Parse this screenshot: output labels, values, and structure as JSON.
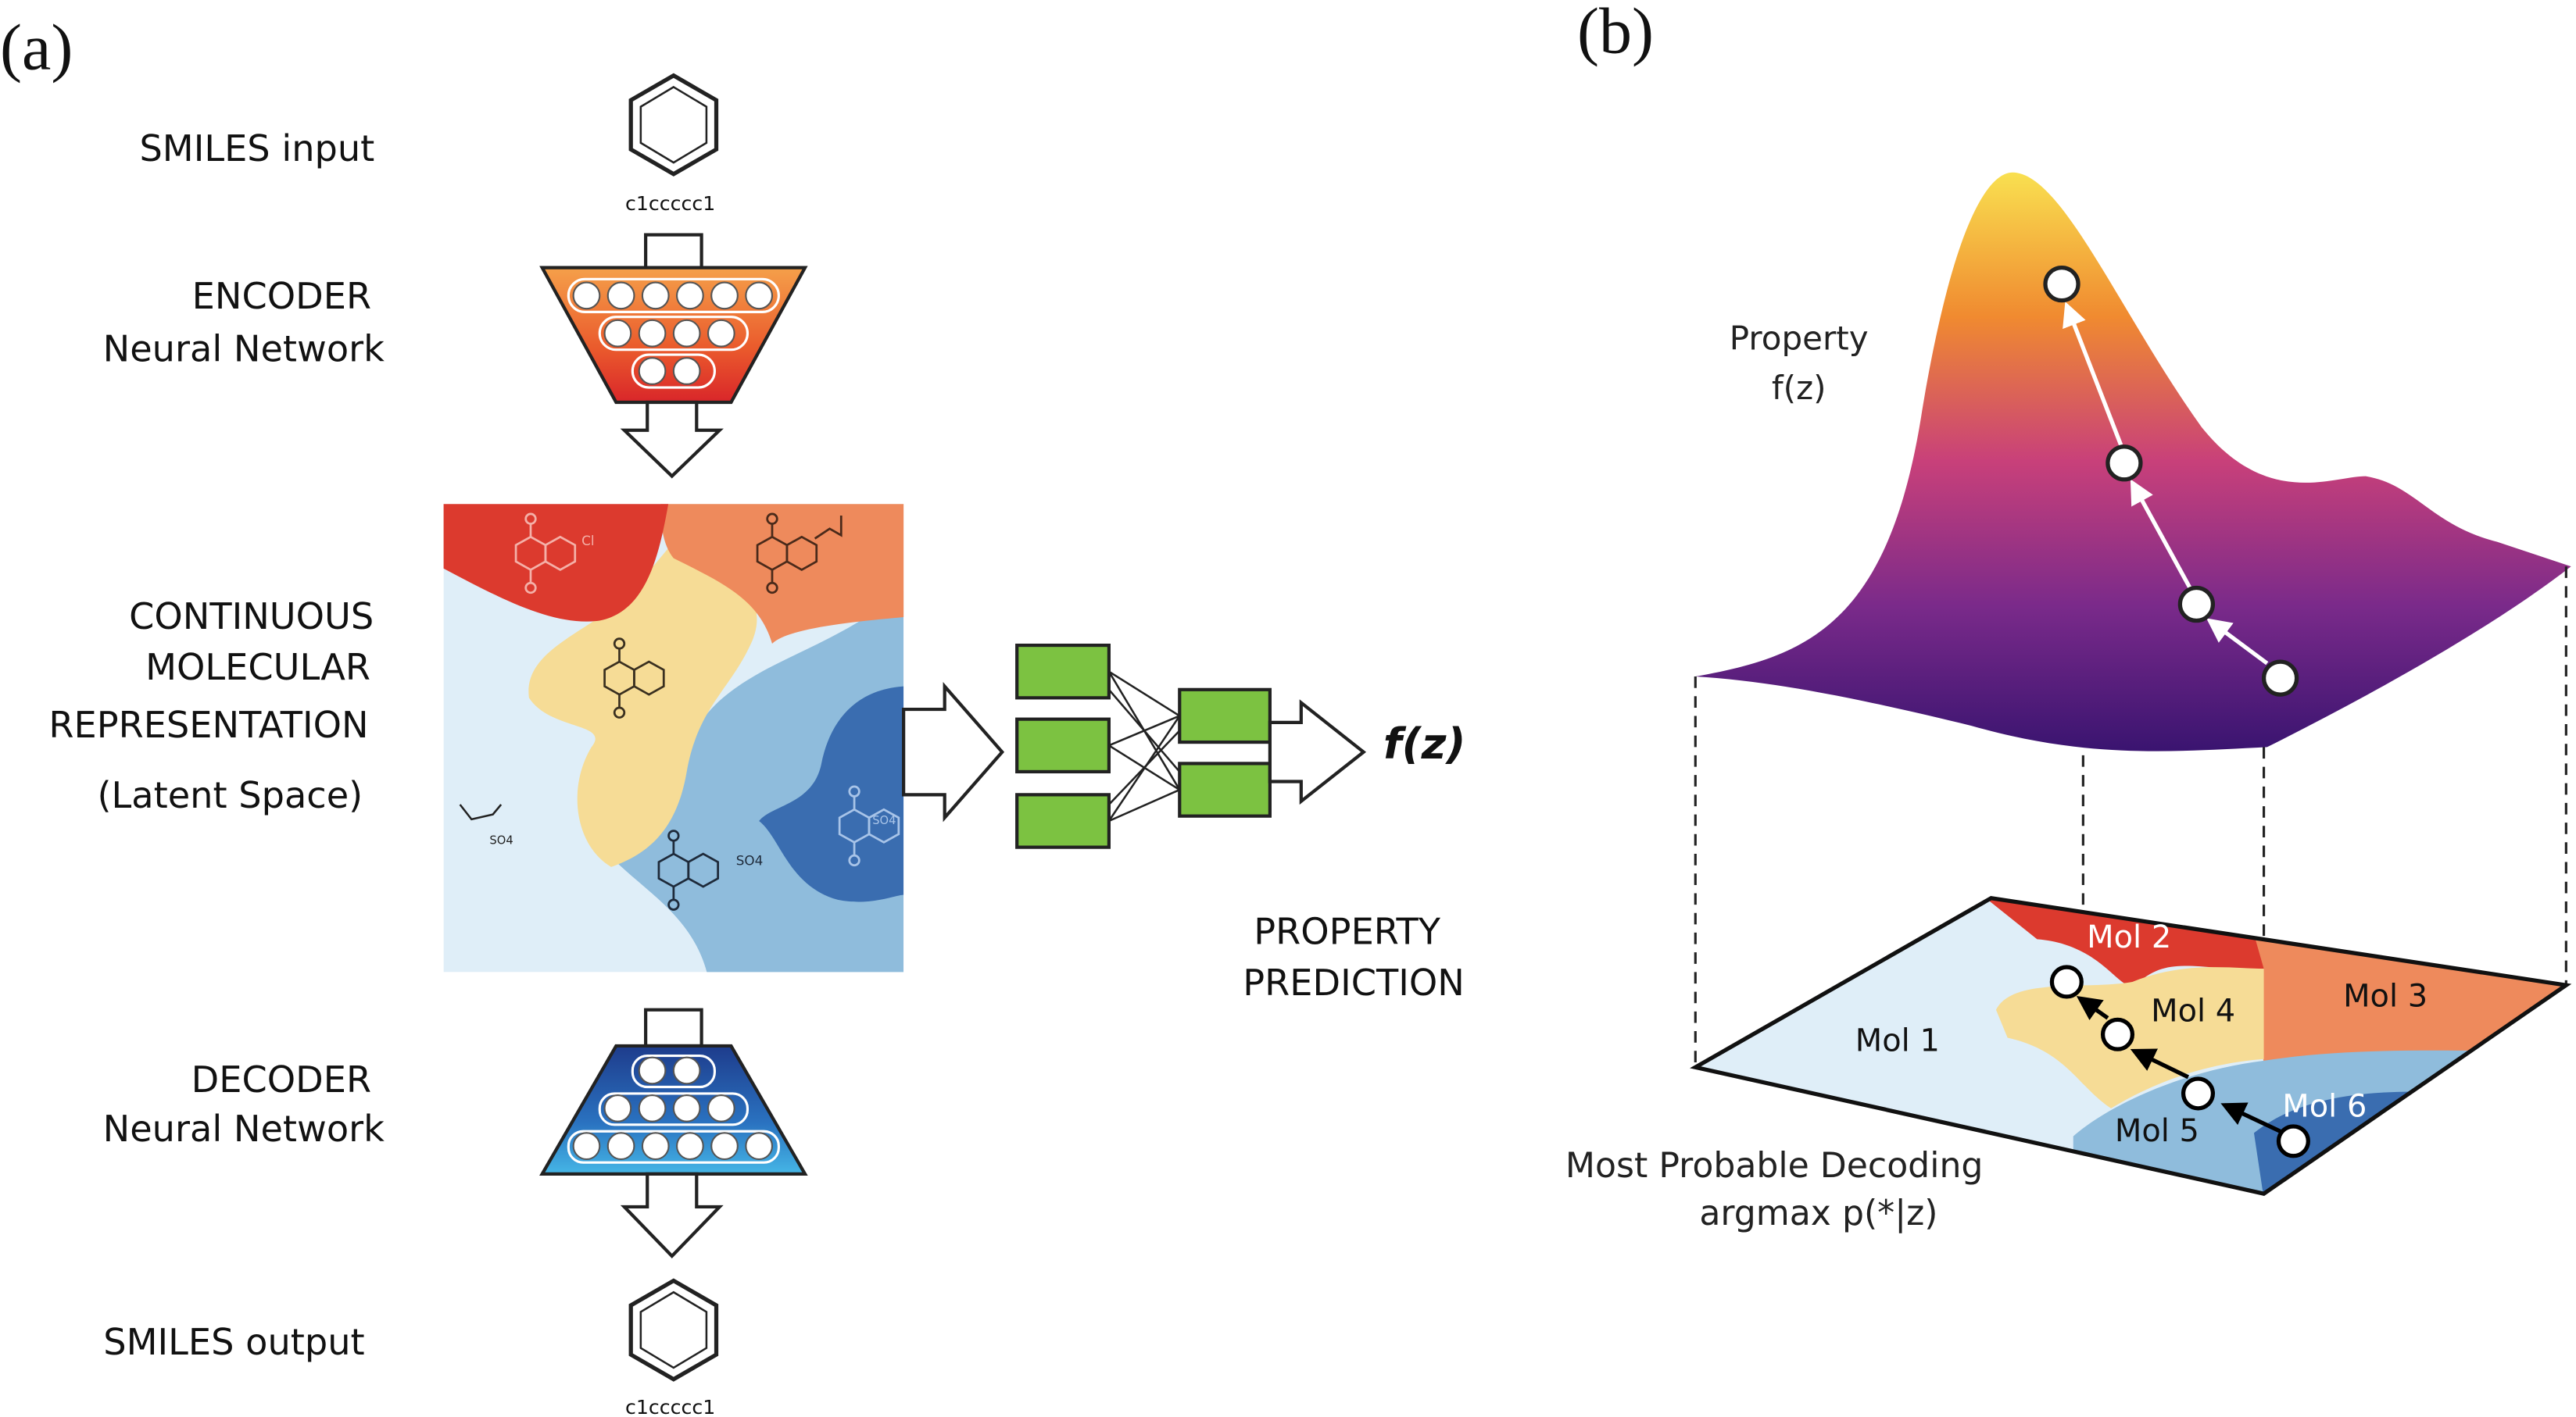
{
  "panel_a": {
    "tag": "(a)",
    "smiles_input_label": "SMILES input",
    "smiles_input_code": "c1ccccc1",
    "encoder_label": "ENCODER",
    "encoder_sub": "Neural Network",
    "latent_label_1": "CONTINUOUS",
    "latent_label_2": "MOLECULAR",
    "latent_label_3": "REPRESENTATION",
    "latent_label_4": "(Latent Space)",
    "decoder_label": "DECODER",
    "decoder_sub": "Neural Network",
    "smiles_output_label": "SMILES output",
    "smiles_output_code": "c1ccccc1",
    "property_output": "f(z)",
    "property_label_1": "PROPERTY",
    "property_label_2": "PREDICTION",
    "substituents": [
      "Cl",
      "SO4",
      "SO4",
      "SO4"
    ]
  },
  "panel_b": {
    "tag": "(b)",
    "surface_label_1": "Property",
    "surface_label_2": "f(z)",
    "regions": [
      "Mol 1",
      "Mol 2",
      "Mol 3",
      "Mol 4",
      "Mol 5",
      "Mol 6"
    ],
    "decoding_label_1": "Most Probable Decoding",
    "decoding_label_2": "argmax p(*|z)"
  },
  "colors": {
    "red": "#dc3a2e",
    "orange": "#ee8a5c",
    "yellow": "#f6dc96",
    "light_blue": "#dfeef8",
    "mid_blue": "#8fbcdc",
    "dark_blue": "#3a6db0",
    "green": "#7cc241"
  }
}
